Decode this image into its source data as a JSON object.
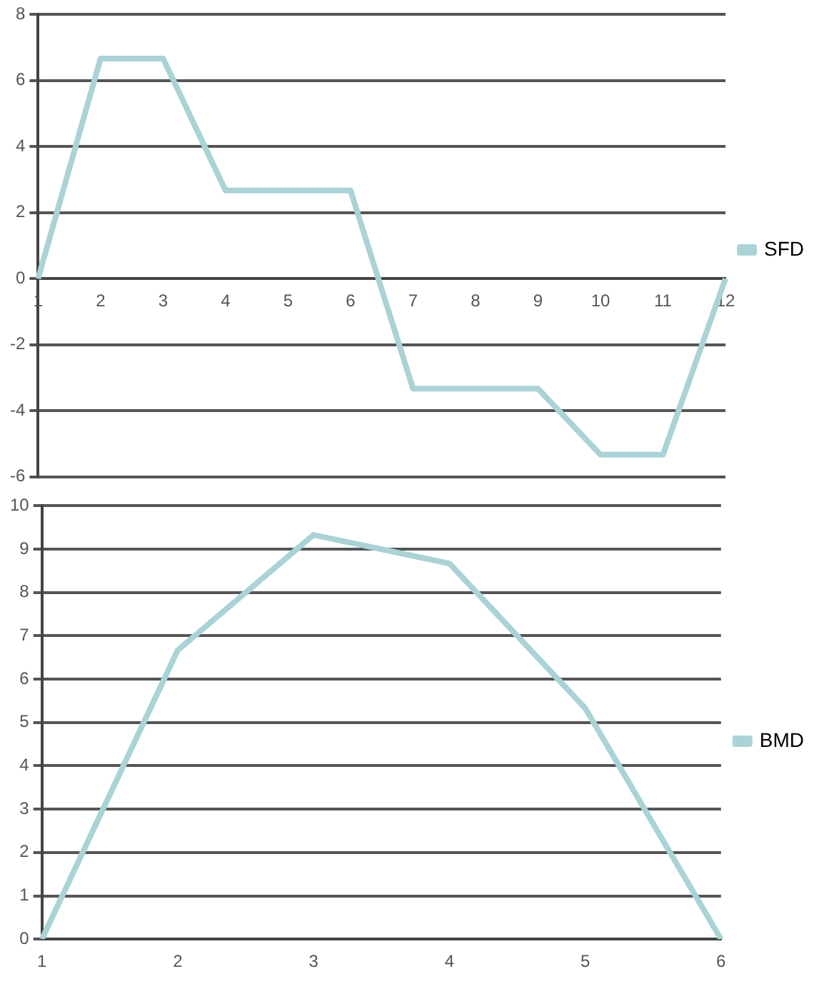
{
  "chart_data": [
    {
      "type": "line",
      "categories": [
        "1",
        "2",
        "3",
        "4",
        "5",
        "6",
        "7",
        "8",
        "9",
        "10",
        "11",
        "12"
      ],
      "series": [
        {
          "name": "SFD",
          "color": "#a9d3d6",
          "values": [
            0,
            6.67,
            6.67,
            2.67,
            2.67,
            2.67,
            -3.33,
            -3.33,
            -3.33,
            -5.33,
            -5.33,
            0
          ]
        }
      ],
      "ylim": [
        -6,
        8
      ],
      "yticks": [
        -6,
        -4,
        -2,
        0,
        2,
        4,
        6,
        8
      ],
      "grid": "y",
      "legend": "right",
      "marker": "none",
      "line_style": "solid"
    },
    {
      "type": "line",
      "categories": [
        "1",
        "2",
        "3",
        "4",
        "5",
        "6"
      ],
      "series": [
        {
          "name": "BMD",
          "color": "#a9d3d6",
          "values": [
            0,
            6.67,
            9.33,
            8.67,
            5.33,
            0
          ]
        }
      ],
      "ylim": [
        0,
        10
      ],
      "yticks": [
        0,
        1,
        2,
        3,
        4,
        5,
        6,
        7,
        8,
        9,
        10
      ],
      "grid": "y",
      "legend": "right",
      "marker": "none",
      "line_style": "solid"
    }
  ]
}
